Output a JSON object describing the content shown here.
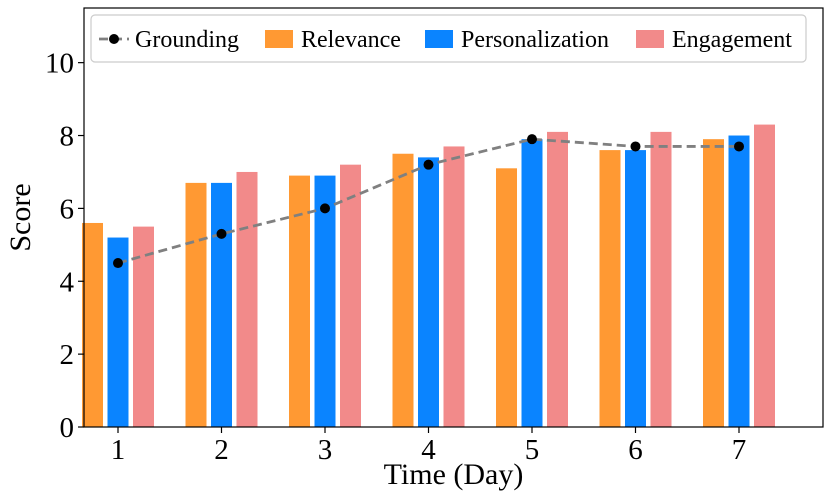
{
  "chart_data": {
    "type": "bar",
    "title": "",
    "xlabel": "Time (Day)",
    "ylabel": "Score",
    "categories": [
      "1",
      "2",
      "3",
      "4",
      "5",
      "6",
      "7"
    ],
    "ylim": [
      0,
      11.5
    ],
    "yticks": [
      "0",
      "2",
      "4",
      "6",
      "8",
      "10"
    ],
    "grid": false,
    "legend_position": "top",
    "series": [
      {
        "name": "Relevance",
        "kind": "bar",
        "color": "#FF9933",
        "values": [
          5.6,
          6.7,
          6.9,
          7.5,
          7.1,
          7.6,
          7.9
        ]
      },
      {
        "name": "Personalization",
        "kind": "bar",
        "color": "#0A84FF",
        "values": [
          5.2,
          6.7,
          6.9,
          7.4,
          7.9,
          7.6,
          8.0
        ]
      },
      {
        "name": "Engagement",
        "kind": "bar",
        "color": "#F28A8A",
        "values": [
          5.5,
          7.0,
          7.2,
          7.7,
          8.1,
          8.1,
          8.3
        ]
      },
      {
        "name": "Grounding",
        "kind": "line",
        "color": "#808080",
        "marker_color": "#000000",
        "values": [
          4.5,
          5.3,
          6.0,
          7.2,
          7.9,
          7.7,
          7.7
        ]
      }
    ],
    "legend_order": [
      "Grounding",
      "Relevance",
      "Personalization",
      "Engagement"
    ]
  }
}
